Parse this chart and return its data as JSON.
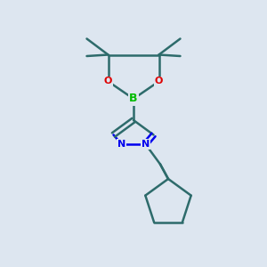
{
  "background_color": "#dde6f0",
  "bond_color": "#2d6b6b",
  "N_color": "#0000ee",
  "O_color": "#dd0000",
  "B_color": "#00bb00",
  "line_width": 1.8,
  "figsize": [
    3.0,
    3.0
  ],
  "dpi": 100,
  "xlim": [
    0,
    10
  ],
  "ylim": [
    0,
    10
  ]
}
